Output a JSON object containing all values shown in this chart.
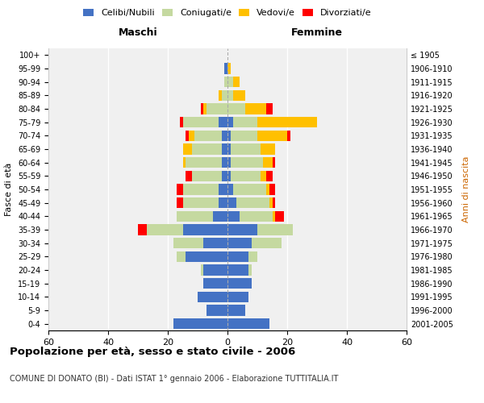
{
  "age_groups": [
    "0-4",
    "5-9",
    "10-14",
    "15-19",
    "20-24",
    "25-29",
    "30-34",
    "35-39",
    "40-44",
    "45-49",
    "50-54",
    "55-59",
    "60-64",
    "65-69",
    "70-74",
    "75-79",
    "80-84",
    "85-89",
    "90-94",
    "95-99",
    "100+"
  ],
  "birth_years": [
    "2001-2005",
    "1996-2000",
    "1991-1995",
    "1986-1990",
    "1981-1985",
    "1976-1980",
    "1971-1975",
    "1966-1970",
    "1961-1965",
    "1956-1960",
    "1951-1955",
    "1946-1950",
    "1941-1945",
    "1936-1940",
    "1931-1935",
    "1926-1930",
    "1921-1925",
    "1916-1920",
    "1911-1915",
    "1906-1910",
    "≤ 1905"
  ],
  "male_celibi": [
    18,
    7,
    10,
    8,
    8,
    14,
    8,
    15,
    5,
    3,
    3,
    2,
    2,
    2,
    2,
    3,
    0,
    0,
    0,
    1,
    0
  ],
  "male_coniugati": [
    0,
    0,
    0,
    0,
    1,
    3,
    10,
    12,
    12,
    12,
    12,
    10,
    12,
    10,
    9,
    12,
    7,
    2,
    1,
    0,
    0
  ],
  "male_vedovi": [
    0,
    0,
    0,
    0,
    0,
    0,
    0,
    0,
    0,
    0,
    0,
    0,
    1,
    3,
    2,
    0,
    1,
    1,
    0,
    0,
    0
  ],
  "male_divorziati": [
    0,
    0,
    0,
    0,
    0,
    0,
    0,
    3,
    0,
    2,
    2,
    2,
    0,
    0,
    1,
    1,
    1,
    0,
    0,
    0,
    0
  ],
  "female_celibi": [
    14,
    6,
    7,
    8,
    7,
    7,
    8,
    10,
    4,
    3,
    2,
    1,
    1,
    1,
    1,
    2,
    0,
    0,
    0,
    0,
    0
  ],
  "female_coniugati": [
    0,
    0,
    0,
    0,
    1,
    3,
    10,
    12,
    11,
    11,
    11,
    10,
    11,
    10,
    9,
    8,
    6,
    2,
    2,
    0,
    0
  ],
  "female_vedovi": [
    0,
    0,
    0,
    0,
    0,
    0,
    0,
    0,
    1,
    1,
    1,
    2,
    3,
    5,
    10,
    20,
    7,
    4,
    2,
    1,
    0
  ],
  "female_divorziati": [
    0,
    0,
    0,
    0,
    0,
    0,
    0,
    0,
    3,
    1,
    2,
    2,
    1,
    0,
    1,
    0,
    2,
    0,
    0,
    0,
    0
  ],
  "colors": {
    "celibi": "#4472c4",
    "coniugati": "#c5d9a0",
    "vedovi": "#ffc000",
    "divorziati": "#ff0000"
  },
  "title": "Popolazione per età, sesso e stato civile - 2006",
  "subtitle": "COMUNE DI DONATO (BI) - Dati ISTAT 1° gennaio 2006 - Elaborazione TUTTITALIA.IT",
  "xlabel_left": "Maschi",
  "xlabel_right": "Femmine",
  "ylabel_left": "Fasce di età",
  "ylabel_right": "Anni di nascita",
  "xlim": 60,
  "bg_color": "#ffffff",
  "plot_bg": "#f0f0f0"
}
